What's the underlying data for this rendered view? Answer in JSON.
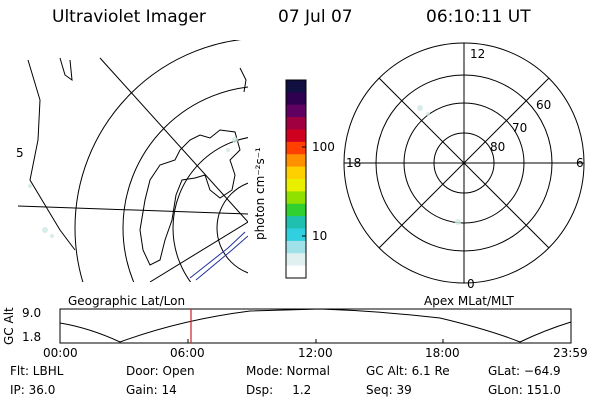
{
  "header": {
    "instrument": "Ultraviolet Imager",
    "date": "07 Jul 07",
    "time": "06:10:11 UT"
  },
  "geo_map": {
    "caption": "Geographic Lat/Lon",
    "edge_label": "5"
  },
  "colorbar": {
    "unit_label": "photon cm⁻²s⁻¹",
    "tick_labels": [
      "100",
      "10"
    ],
    "colors": [
      "#101040",
      "#300050",
      "#600060",
      "#a00040",
      "#d00020",
      "#ff4000",
      "#ff9000",
      "#ffd000",
      "#e8f000",
      "#90e000",
      "#30d030",
      "#20c0b0",
      "#30d0e0",
      "#a0e0e8",
      "#e0f0f0",
      "#ffffff"
    ]
  },
  "polar_map": {
    "caption": "Apex MLat/MLT",
    "mlt_labels": {
      "top": "12",
      "bottom": "0",
      "left": "18",
      "right": "6"
    },
    "lat_labels": [
      "60",
      "70",
      "80"
    ]
  },
  "altitude_plot": {
    "ylabel": "GC Alt",
    "y_ticks": [
      "9.0",
      "1.8"
    ],
    "x_ticks": [
      "00:00",
      "06:00",
      "12:00",
      "18:00",
      "23:59"
    ],
    "marker_color": "#cc2020"
  },
  "info": {
    "filter": "Flt: LBHL",
    "ip": "IP: 36.0",
    "door": "Door: Open",
    "gain": "Gain: 14",
    "mode": "Mode: Normal",
    "dsp": "Dsp:     1.2",
    "gc_alt": "GC Alt: 6.1 Re",
    "seq": "Seq: 39",
    "glat": "GLat: −64.9",
    "glon": "GLon: 151.0"
  }
}
